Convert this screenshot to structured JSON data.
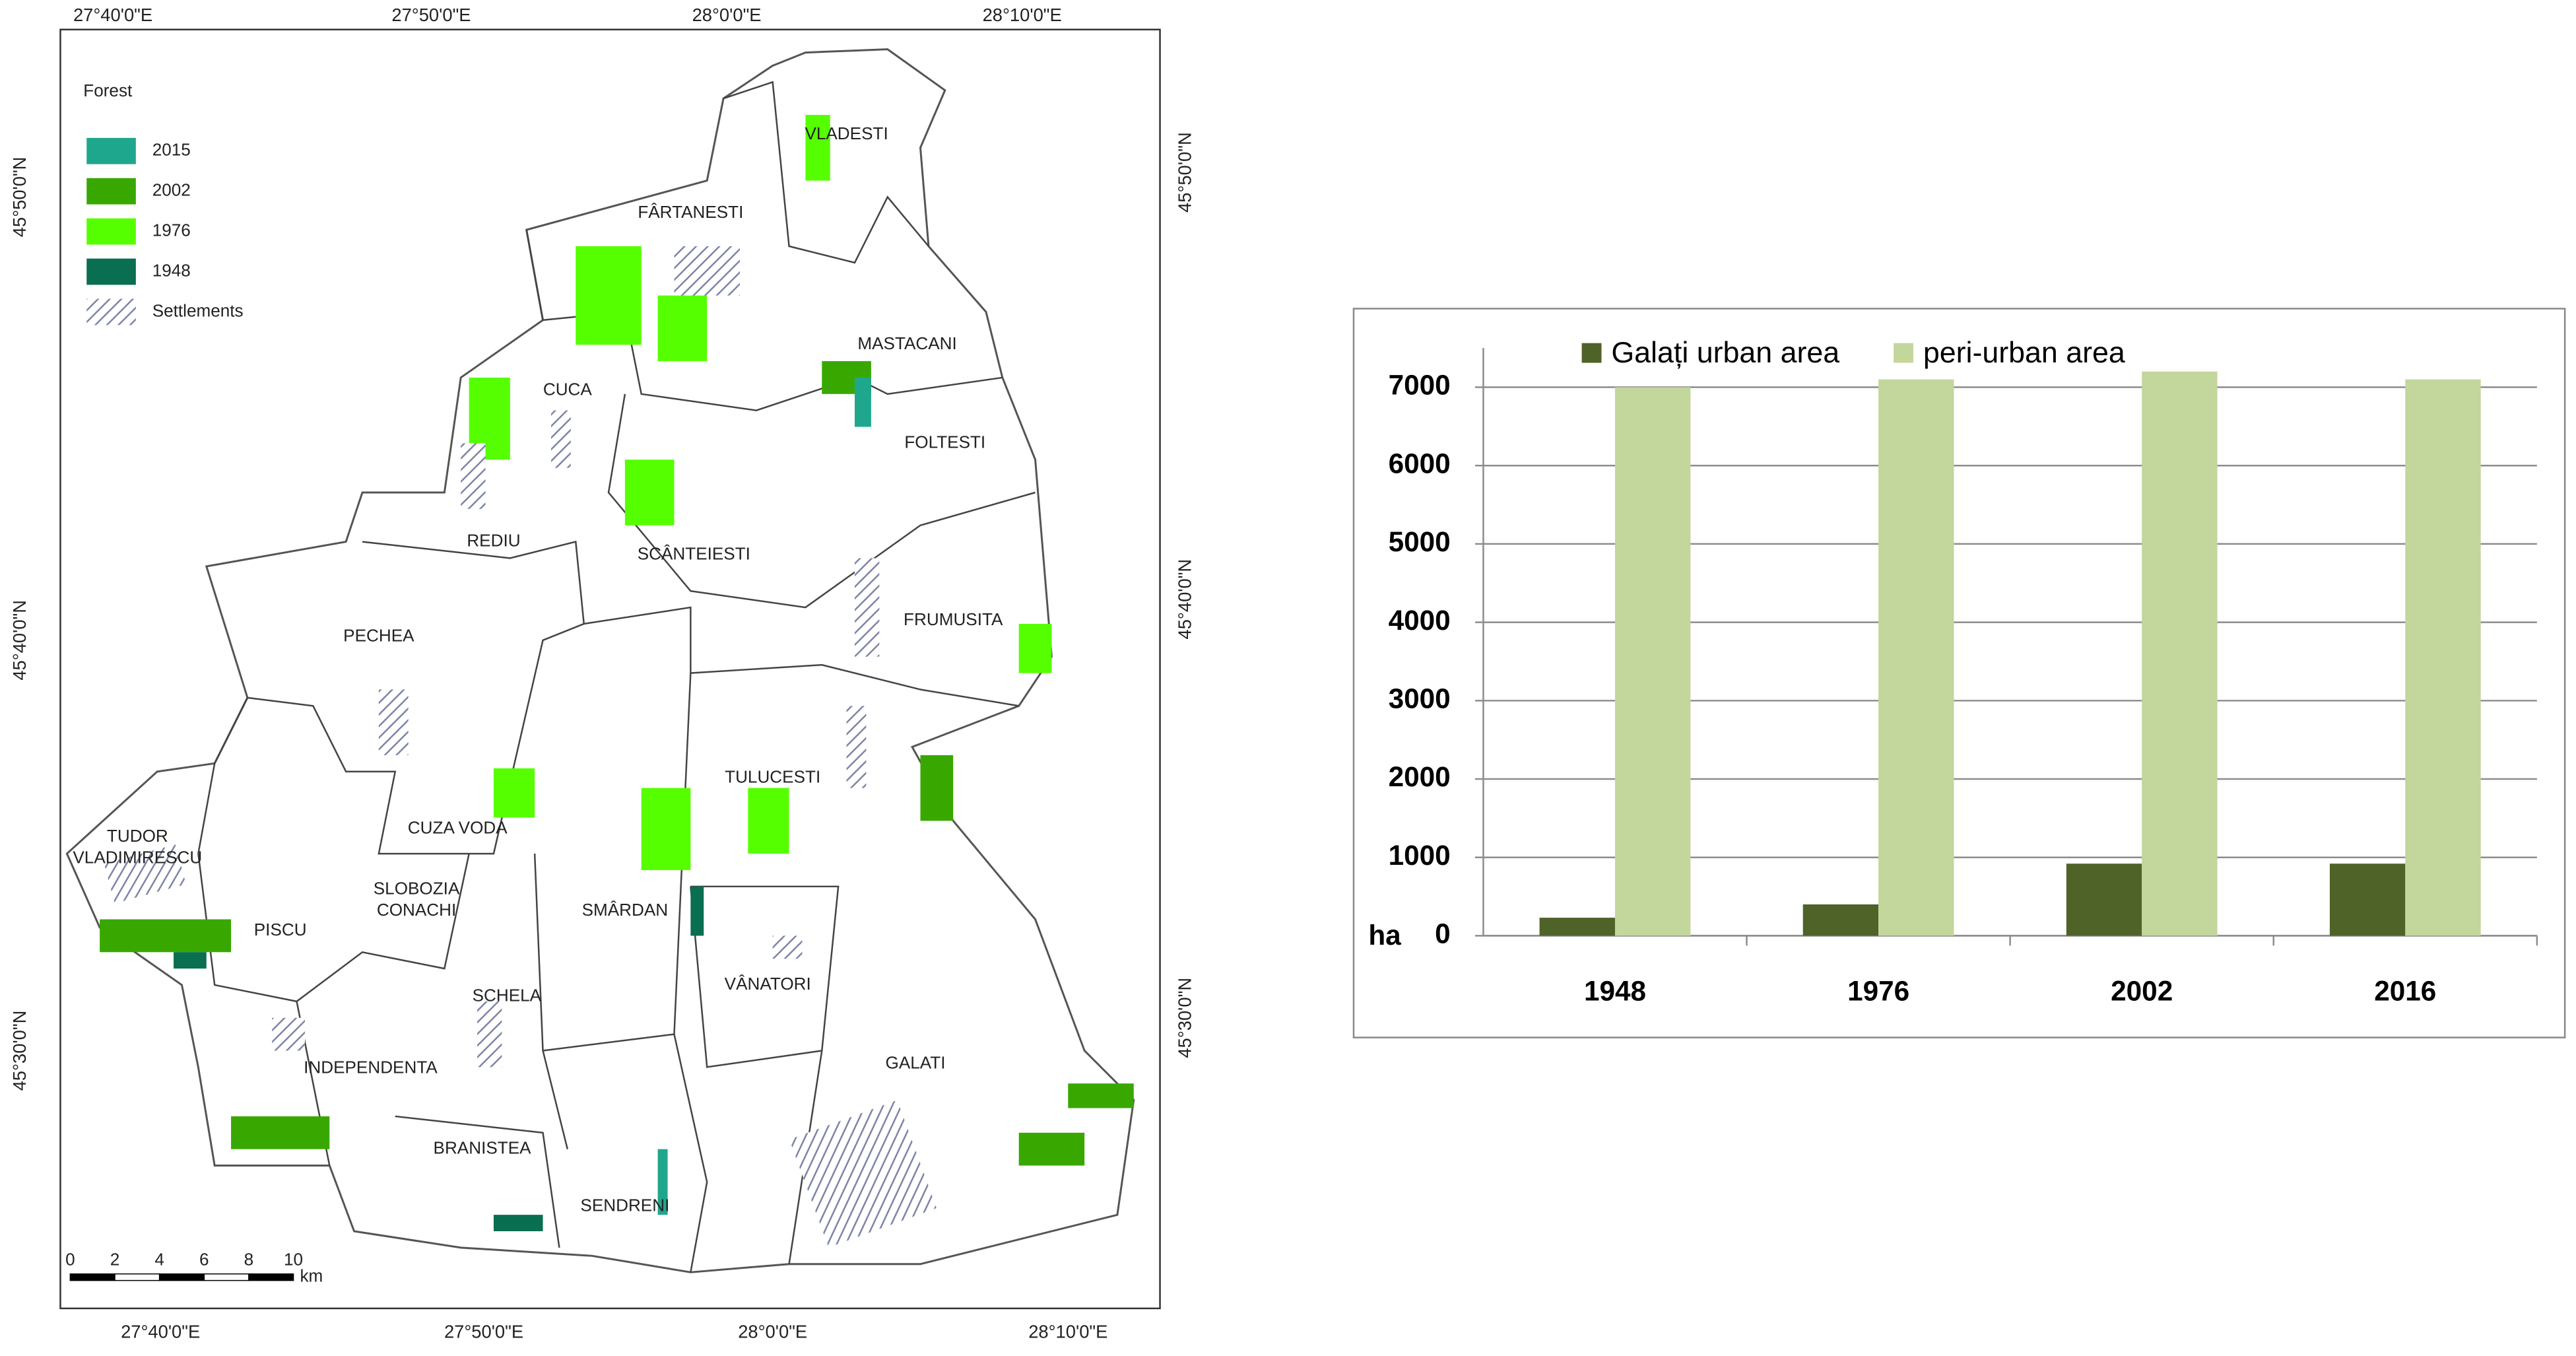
{
  "map": {
    "coords": {
      "top": [
        "27°40'0\"E",
        "27°50'0\"E",
        "28°0'0\"E",
        "28°10'0\"E"
      ],
      "bottom": [
        "27°40'0\"E",
        "27°50'0\"E",
        "28°0'0\"E",
        "28°10'0\"E"
      ],
      "left": [
        "45°50'0\"N",
        "45°40'0\"N",
        "45°30'0\"N"
      ],
      "right": [
        "45°50'0\"N",
        "45°40'0\"N",
        "45°30'0\"N"
      ]
    },
    "legend": {
      "title": "Forest",
      "items": [
        {
          "label": "2015",
          "color": "#1ea78c"
        },
        {
          "label": "2002",
          "color": "#38a800"
        },
        {
          "label": "1976",
          "color": "#55ff00"
        },
        {
          "label": "1948",
          "color": "#0a6e50"
        }
      ],
      "settlements": "Settlements"
    },
    "places": [
      [
        "VLADESTI"
      ],
      [
        "FÂRTANESTI"
      ],
      [
        "MASTACANI"
      ],
      [
        "CUCA"
      ],
      [
        "FOLTESTI"
      ],
      [
        "REDIU"
      ],
      [
        "SCÂNTEIESTI"
      ],
      [
        "FRUMUSITA"
      ],
      [
        "PECHEA"
      ],
      [
        "TULUCESTI"
      ],
      [
        "CUZA VODA"
      ],
      [
        "TUDOR",
        "VLADIMIRESCU"
      ],
      [
        "SLOBOZIA",
        "CONACHI"
      ],
      [
        "PISCU"
      ],
      [
        "SMÂRDAN"
      ],
      [
        "SCHELA"
      ],
      [
        "VÂNATORI"
      ],
      [
        "INDEPENDENTA"
      ],
      [
        "GALATI"
      ],
      [
        "BRANISTEA"
      ],
      [
        "SENDRENI"
      ]
    ],
    "scale_bar": {
      "ticks": [
        0,
        2,
        4,
        6,
        8,
        10
      ],
      "unit": "km"
    }
  },
  "chart_data": {
    "type": "bar",
    "categories": [
      "1948",
      "1976",
      "2002",
      "2016"
    ],
    "series": [
      {
        "name": "Galați urban area",
        "color": "#4f6228",
        "values": [
          230,
          400,
          920,
          920
        ]
      },
      {
        "name": "peri-urban area",
        "color": "#c3d69b",
        "values": [
          7000,
          7100,
          7200,
          7100
        ]
      }
    ],
    "y_unit": "ha",
    "ylim": [
      0,
      7500
    ],
    "yticks": [
      0,
      1000,
      2000,
      3000,
      4000,
      5000,
      6000,
      7000
    ],
    "grid": true,
    "legend": "top"
  }
}
